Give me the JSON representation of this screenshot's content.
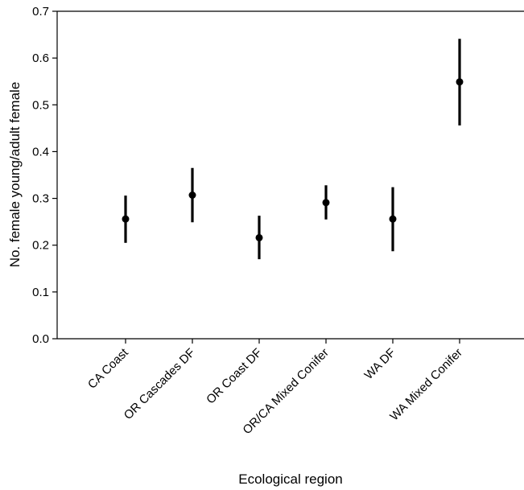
{
  "chart_data": {
    "type": "scatter",
    "xlabel": "Ecological region",
    "ylabel": "No. female young/adult female",
    "ylim": [
      0,
      0.7
    ],
    "yticks": [
      0.0,
      0.1,
      0.2,
      0.3,
      0.4,
      0.5,
      0.6,
      0.7
    ],
    "ytick_labels": [
      "0.0",
      "0.1",
      "0.2",
      "0.3",
      "0.4",
      "0.5",
      "0.6",
      "0.7"
    ],
    "categories": [
      "CA Coast",
      "OR Cascades DF",
      "OR Coast DF",
      "OR/CA Mixed Conifer",
      "WA DF",
      "WA Mixed Conifer"
    ],
    "values": [
      0.256,
      0.307,
      0.216,
      0.291,
      0.256,
      0.549
    ],
    "error_low": [
      0.205,
      0.249,
      0.17,
      0.255,
      0.187,
      0.456
    ],
    "error_high": [
      0.306,
      0.365,
      0.263,
      0.328,
      0.324,
      0.641
    ],
    "grid": false,
    "legend": "none",
    "colors": {
      "marker": "#000000",
      "axis": "#000000"
    }
  }
}
